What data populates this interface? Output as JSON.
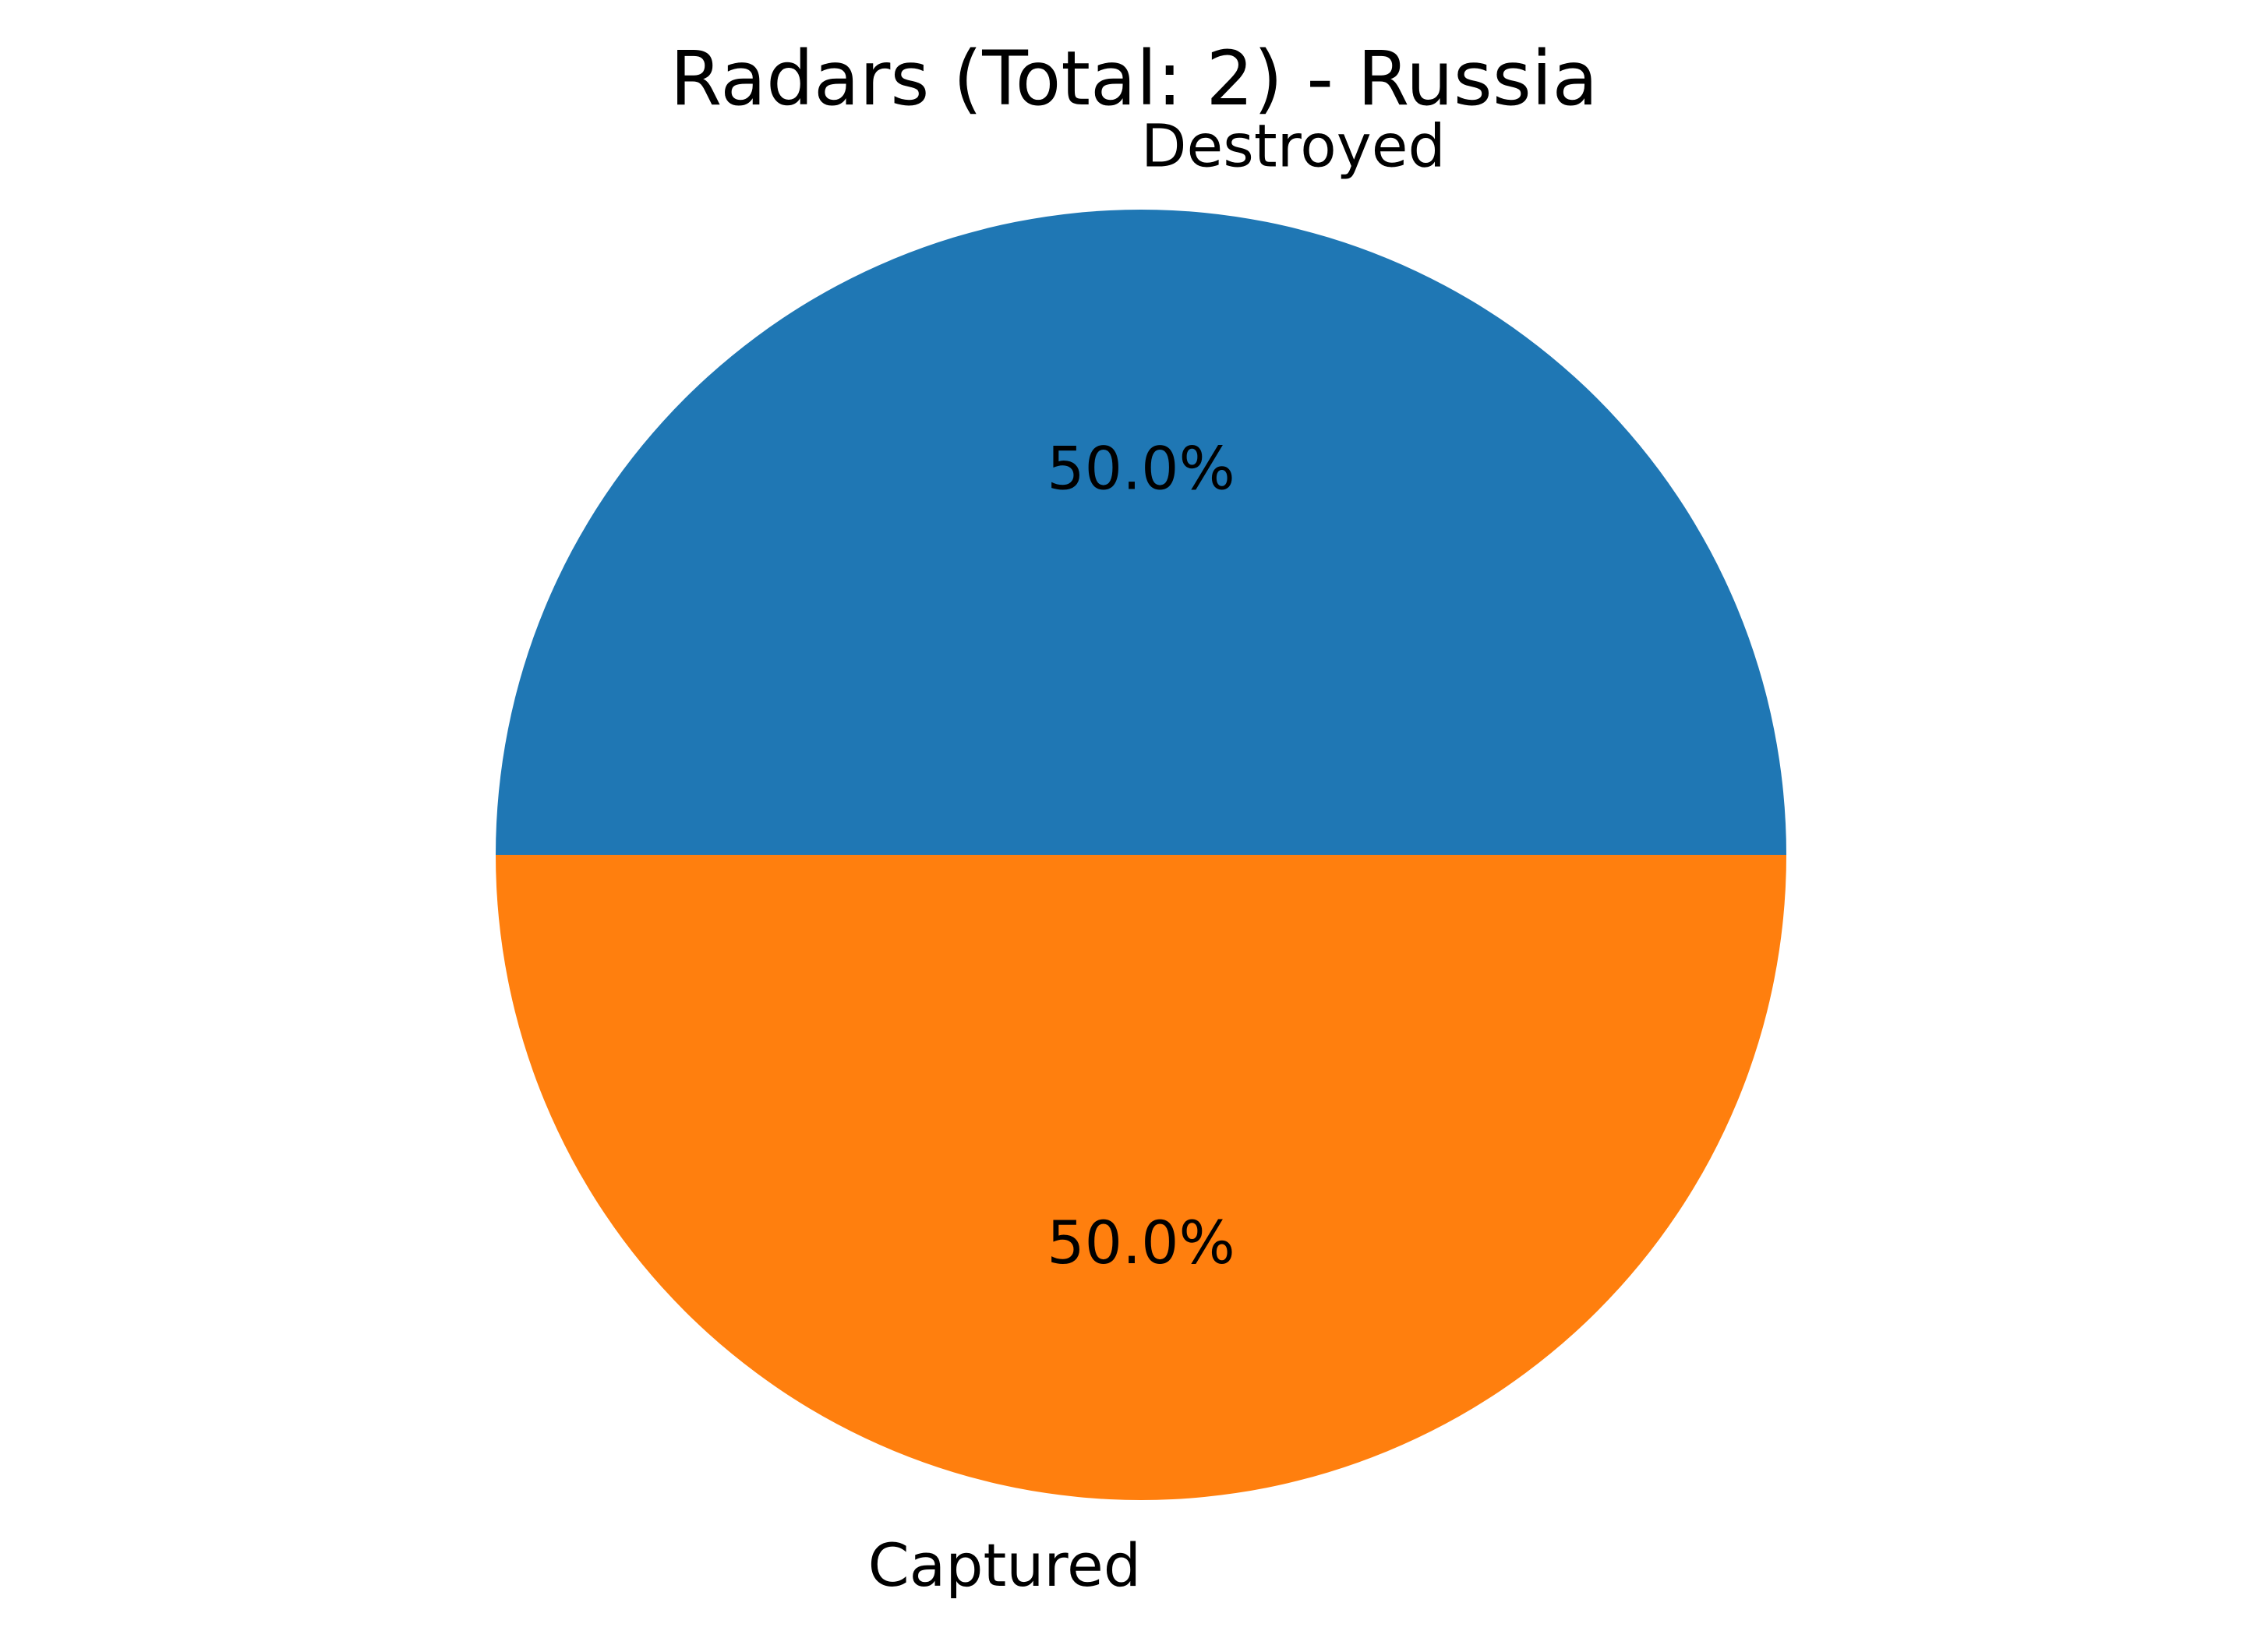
{
  "chart_data": {
    "type": "pie",
    "title": "Radars (Total: 2) - Russia",
    "start_angle_deg": 0,
    "direction": "counterclockwise",
    "slices": [
      {
        "label": "Destroyed",
        "value": 1,
        "percent_label": "50.0%",
        "color": "#1f77b4"
      },
      {
        "label": "Captured",
        "value": 1,
        "percent_label": "50.0%",
        "color": "#ff7f0e"
      }
    ]
  }
}
